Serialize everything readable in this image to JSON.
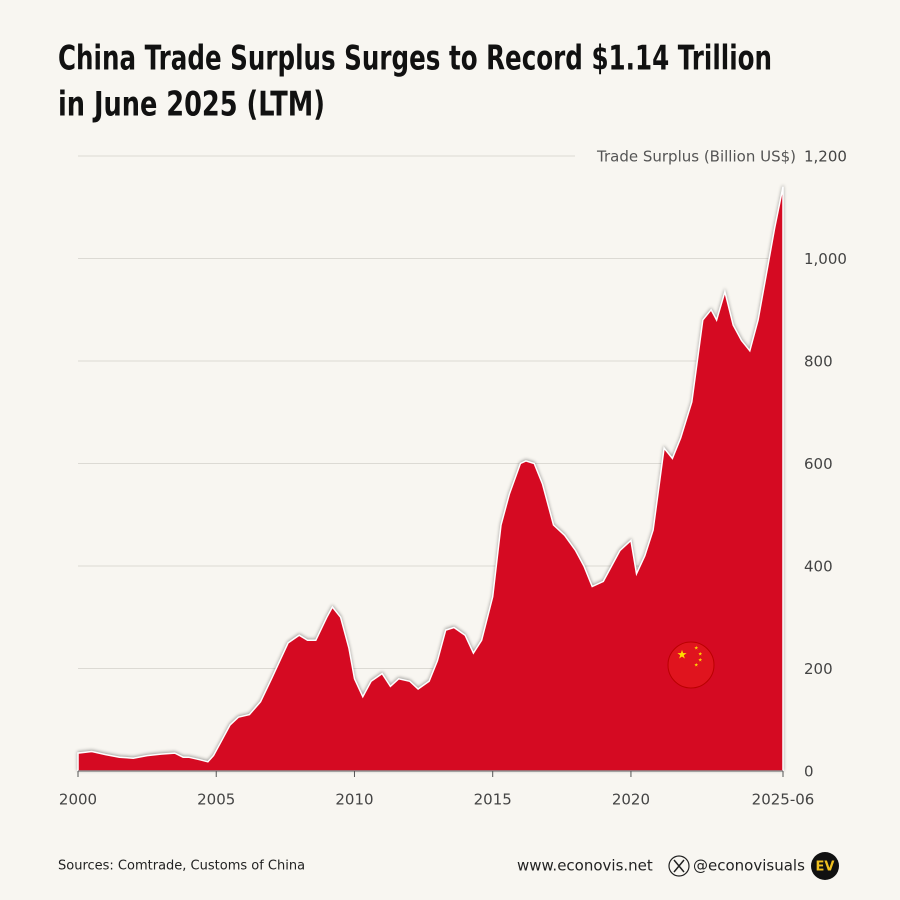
{
  "chart_data": {
    "type": "area",
    "title": [
      "China Trade Surplus Surges to Record $1.14 Trillion",
      "in June 2025 (LTM)"
    ],
    "ylabel": "Trade Surplus (Billion US$)",
    "color": "#d50a22",
    "x": [
      2000,
      2000.5,
      2001,
      2001.5,
      2002,
      2002.5,
      2003,
      2003.5,
      2003.8,
      2004,
      2004.4,
      2004.7,
      2004.9,
      2005.2,
      2005.5,
      2005.8,
      2006.2,
      2006.6,
      2007,
      2007.3,
      2007.6,
      2008,
      2008.3,
      2008.6,
      2009,
      2009.2,
      2009.5,
      2009.8,
      2010,
      2010.3,
      2010.6,
      2011,
      2011.3,
      2011.6,
      2012,
      2012.3,
      2012.7,
      2013,
      2013.3,
      2013.6,
      2014,
      2014.3,
      2014.6,
      2015,
      2015.3,
      2015.6,
      2016,
      2016.2,
      2016.5,
      2016.8,
      2017.2,
      2017.6,
      2018,
      2018.3,
      2018.6,
      2019,
      2019.3,
      2019.6,
      2020,
      2020.2,
      2020.5,
      2020.8,
      2021.2,
      2021.5,
      2021.8,
      2022.2,
      2022.6,
      2022.9,
      2023.1,
      2023.4,
      2023.7,
      2024,
      2024.3,
      2024.6,
      2024.9,
      2025.2,
      2025.5
    ],
    "values": [
      35,
      38,
      32,
      27,
      25,
      30,
      33,
      35,
      27,
      27,
      22,
      18,
      30,
      60,
      90,
      105,
      110,
      135,
      180,
      215,
      250,
      265,
      255,
      255,
      300,
      320,
      300,
      240,
      180,
      145,
      175,
      190,
      165,
      180,
      175,
      160,
      175,
      215,
      275,
      280,
      265,
      230,
      255,
      340,
      480,
      540,
      600,
      605,
      600,
      560,
      480,
      460,
      430,
      400,
      360,
      370,
      400,
      430,
      450,
      385,
      420,
      470,
      630,
      610,
      650,
      720,
      880,
      900,
      880,
      935,
      870,
      840,
      820,
      880,
      970,
      1060,
      1140
    ],
    "xlim": [
      2000,
      2025.5
    ],
    "xticks": [
      2000,
      2005,
      2010,
      2015,
      2020,
      {
        "value": 2025.5,
        "label": "2025-06"
      }
    ],
    "ylim": [
      0,
      1200
    ],
    "yticks": [
      0,
      200,
      400,
      600,
      800,
      {
        "value": 1000,
        "label": "1,000"
      },
      {
        "value": 1200,
        "label": "1,200"
      }
    ],
    "grid": true
  },
  "footer": {
    "sources": "Sources: Comtrade, Customs of China",
    "website": "www.econovis.net",
    "handle": "@econovisuals",
    "logo": "EV"
  }
}
